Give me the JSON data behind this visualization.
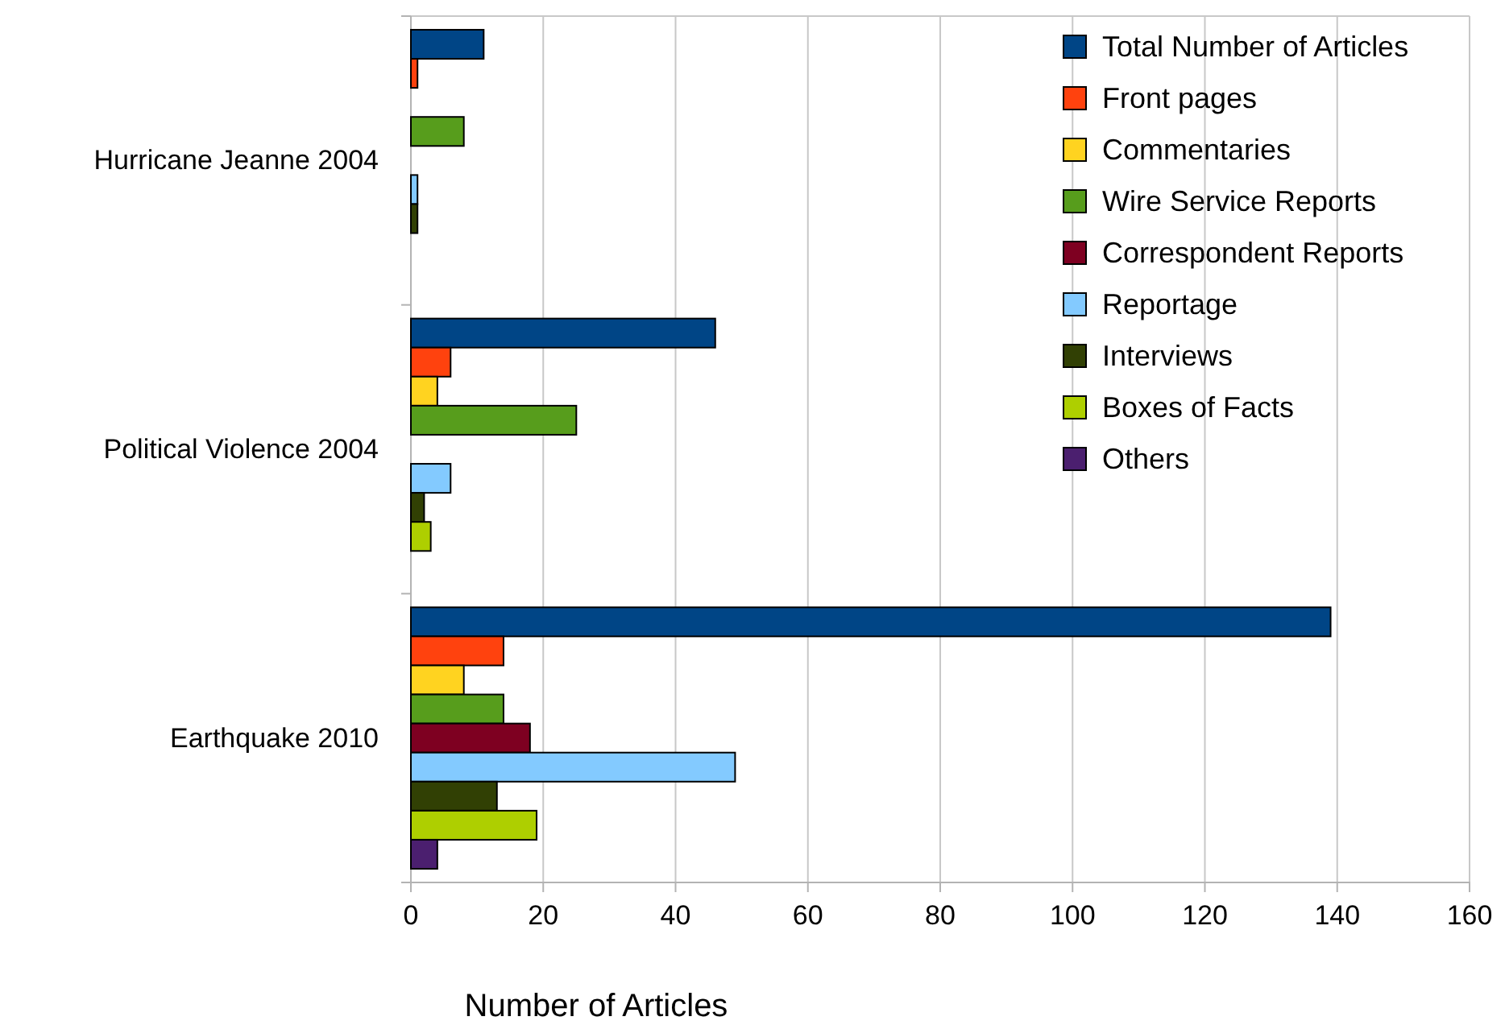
{
  "chart_data": {
    "type": "bar",
    "orientation": "horizontal",
    "xlabel": "Number of Articles",
    "categories": [
      "Hurricane Jeanne 2004",
      "Political Violence 2004",
      "Earthquake 2010"
    ],
    "series": [
      {
        "name": "Total Number of Articles",
        "color": "#004586",
        "values": [
          11,
          46,
          139
        ]
      },
      {
        "name": "Front pages",
        "color": "#ff420e",
        "values": [
          1,
          6,
          14
        ]
      },
      {
        "name": "Commentaries",
        "color": "#ffd320",
        "values": [
          null,
          4,
          8
        ]
      },
      {
        "name": "Wire Service Reports",
        "color": "#579d1c",
        "values": [
          8,
          25,
          14
        ]
      },
      {
        "name": "Correspondent Reports",
        "color": "#7e0021",
        "values": [
          null,
          null,
          18
        ]
      },
      {
        "name": "Reportage",
        "color": "#83caff",
        "values": [
          1,
          6,
          49
        ]
      },
      {
        "name": "Interviews",
        "color": "#314004",
        "values": [
          1,
          2,
          13
        ]
      },
      {
        "name": "Boxes of Facts",
        "color": "#aecf00",
        "values": [
          null,
          3,
          19
        ]
      },
      {
        "name": "Others",
        "color": "#4b1f6f",
        "values": [
          null,
          null,
          4
        ]
      }
    ],
    "xlim": [
      0,
      160
    ],
    "xticks": [
      0,
      20,
      40,
      60,
      80,
      100,
      120,
      140,
      160
    ],
    "grid": "x",
    "legend": "top right"
  }
}
